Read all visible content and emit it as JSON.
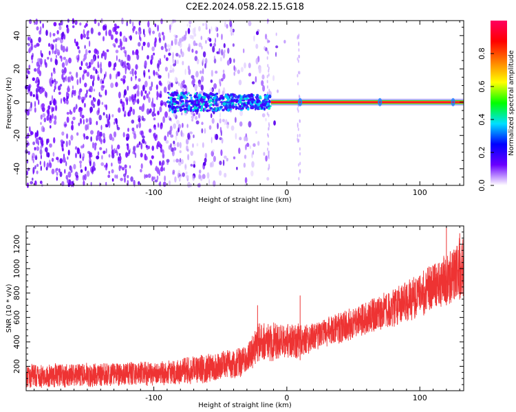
{
  "title": "C2E2.2024.058.22.15.G18",
  "chart_data": [
    {
      "type": "heatmap",
      "name": "spectrogram",
      "xlabel": "Height of straight line (km)",
      "ylabel": "Frequency (Hz)",
      "xlim": [
        -196,
        133
      ],
      "ylim": [
        -50,
        49
      ],
      "x_ticks": [
        -100,
        0,
        100
      ],
      "x_tick_labels": [
        "-100",
        "0",
        "100"
      ],
      "y_ticks": [
        -40,
        -20,
        0,
        20,
        40
      ],
      "y_tick_labels": [
        "-40",
        "-20",
        "0",
        "20",
        "40"
      ],
      "colorbar": {
        "label": "Normalized spectral amplitude",
        "range": [
          0,
          1
        ],
        "ticks": [
          0,
          0.2,
          0.4,
          0.6,
          0.8
        ],
        "tick_labels": [
          "0.0",
          "0.2",
          "0.4",
          "0.6",
          "0.8"
        ],
        "colormap": [
          "#ffffff",
          "#6a00ff",
          "#0000ff",
          "#00e0ff",
          "#00ff00",
          "#ffff00",
          "#ff8000",
          "#ff0000",
          "#ff0060"
        ]
      },
      "features": {
        "noise_region_x": [
          -196,
          -90
        ],
        "fading_noise_x": [
          -90,
          -10
        ],
        "signal_line_freq": 0,
        "signal_start_x": -90,
        "strong_line_start_x": -12
      }
    },
    {
      "type": "line",
      "name": "snr",
      "xlabel": "Height of straight line (km)",
      "ylabel": "SNR (10 * v/v)",
      "xlim": [
        -196,
        133
      ],
      "ylim": [
        0,
        1350
      ],
      "x_ticks": [
        -100,
        0,
        100
      ],
      "x_tick_labels": [
        "-100",
        "0",
        "100"
      ],
      "y_ticks": [
        200,
        400,
        600,
        800,
        1000,
        1200
      ],
      "y_tick_labels": [
        "200",
        "400",
        "600",
        "800",
        "1000",
        "1200"
      ],
      "color": "#ee3333",
      "series": [
        {
          "name": "SNR",
          "x": [
            -196,
            -150,
            -100,
            -60,
            -30,
            -22,
            -10,
            0,
            10,
            20,
            40,
            60,
            80,
            100,
            120,
            133
          ],
          "lower": [
            20,
            30,
            40,
            60,
            120,
            240,
            240,
            260,
            250,
            330,
            380,
            460,
            520,
            600,
            700,
            760
          ],
          "upper": [
            220,
            230,
            240,
            300,
            370,
            560,
            560,
            560,
            560,
            560,
            640,
            740,
            840,
            960,
            1140,
            1290
          ],
          "spikes": [
            {
              "x": -22,
              "value": 700
            },
            {
              "x": 10,
              "value": 780
            },
            {
              "x": 120,
              "value": 1340
            },
            {
              "x": 130,
              "value": 1290
            }
          ]
        }
      ]
    }
  ]
}
